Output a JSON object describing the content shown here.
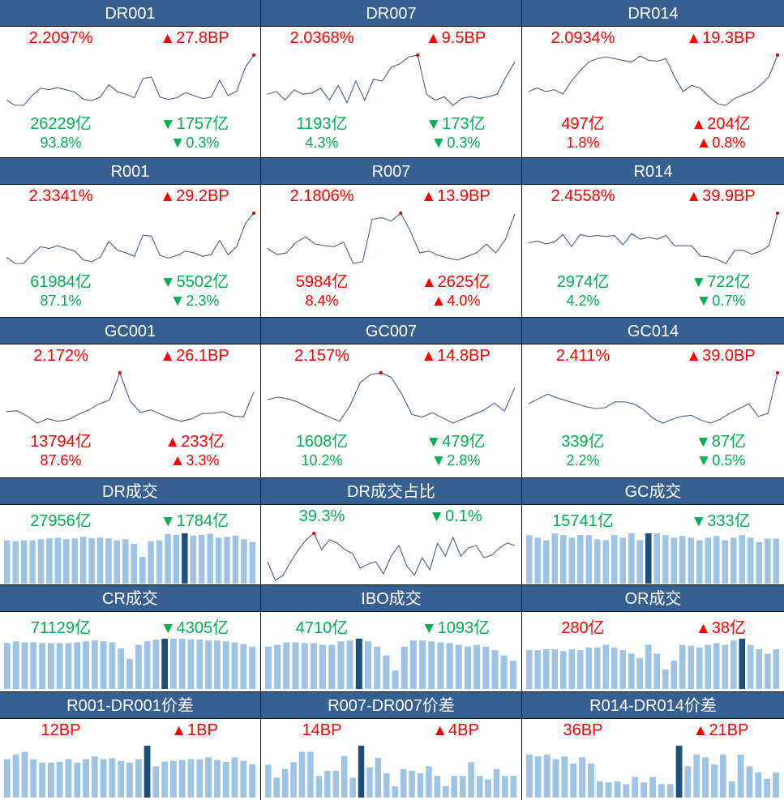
{
  "colors": {
    "header": "#376092",
    "up": "#ff0000",
    "down": "#00b050",
    "line": "#4a5f80",
    "bar": "#9dc3e6",
    "bar_current": "#1f4e79",
    "marker": "#e00000"
  },
  "panels": [
    {
      "title": "DR001",
      "type": "line",
      "rows": [
        {
          "left": {
            "text": "2.2097%",
            "color": "red"
          },
          "right": {
            "text": "27.8BP",
            "dir": "up"
          }
        },
        {
          "left": {
            "text": "26229亿",
            "color": "green"
          },
          "right": {
            "text": "1757亿",
            "dir": "down"
          }
        },
        {
          "left": {
            "text": "93.8%",
            "color": "green"
          },
          "right": {
            "text": "0.3%",
            "dir": "down"
          }
        }
      ],
      "series": [
        -365,
        -383,
        -383,
        -350,
        -325,
        -330,
        -323,
        -330,
        -338,
        -362,
        -367,
        -355,
        -313,
        -337,
        -345,
        -357,
        -292,
        -287,
        -355,
        -363,
        -357,
        -340,
        -350,
        -360,
        -355,
        -298,
        -350,
        -335,
        -255,
        -213
      ]
    },
    {
      "title": "DR007",
      "type": "line",
      "rows": [
        {
          "left": {
            "text": "2.0368%",
            "color": "red"
          },
          "right": {
            "text": "9.5BP",
            "dir": "up"
          }
        },
        {
          "left": {
            "text": "1193亿",
            "color": "green"
          },
          "right": {
            "text": "173亿",
            "dir": "down"
          }
        },
        {
          "left": {
            "text": "4.3%",
            "color": "green"
          },
          "right": {
            "text": "0.3%",
            "dir": "down"
          }
        }
      ],
      "series": [
        -115,
        -112,
        -122,
        -110,
        -115,
        -114,
        -108,
        -122,
        -105,
        -125,
        -100,
        -122,
        -98,
        -100,
        -84,
        -80,
        -72,
        -70,
        -115,
        -122,
        -118,
        -128,
        -120,
        -118,
        -120,
        -118,
        -115,
        -95,
        -78
      ]
    },
    {
      "title": "DR014",
      "type": "line",
      "rows": [
        {
          "left": {
            "text": "2.0934%",
            "color": "red"
          },
          "right": {
            "text": "19.3BP",
            "dir": "up"
          }
        },
        {
          "left": {
            "text": "497亿",
            "color": "red"
          },
          "right": {
            "text": "204亿",
            "dir": "up"
          }
        },
        {
          "left": {
            "text": "1.8%",
            "color": "red"
          },
          "right": {
            "text": "0.8%",
            "dir": "up"
          }
        }
      ],
      "series": [
        -112,
        -108,
        -112,
        -110,
        -115,
        -100,
        -88,
        -78,
        -74,
        -72,
        -74,
        -76,
        -78,
        -71,
        -76,
        -77,
        -74,
        -95,
        -112,
        -105,
        -108,
        -118,
        -126,
        -128,
        -120,
        -116,
        -112,
        -105,
        -95,
        -70
      ]
    },
    {
      "title": "R001",
      "type": "line",
      "rows": [
        {
          "left": {
            "text": "2.3341%",
            "color": "red"
          },
          "right": {
            "text": "29.2BP",
            "dir": "up"
          }
        },
        {
          "left": {
            "text": "61984亿",
            "color": "green"
          },
          "right": {
            "text": "5502亿",
            "dir": "down"
          }
        },
        {
          "left": {
            "text": "87.1%",
            "color": "green"
          },
          "right": {
            "text": "2.3%",
            "dir": "down"
          }
        }
      ],
      "series": [
        -315,
        -322,
        -322,
        -312,
        -303,
        -305,
        -302,
        -305,
        -308,
        -318,
        -320,
        -315,
        -297,
        -307,
        -310,
        -314,
        -290,
        -291,
        -313,
        -316,
        -313,
        -308,
        -310,
        -314,
        -312,
        -296,
        -312,
        -303,
        -277,
        -265
      ]
    },
    {
      "title": "R007",
      "type": "line",
      "rows": [
        {
          "left": {
            "text": "2.1806%",
            "color": "red"
          },
          "right": {
            "text": "13.9BP",
            "dir": "up"
          }
        },
        {
          "left": {
            "text": "5984亿",
            "color": "red"
          },
          "right": {
            "text": "2625亿",
            "dir": "up"
          }
        },
        {
          "left": {
            "text": "8.4%",
            "color": "red"
          },
          "right": {
            "text": "4.0%",
            "dir": "up"
          }
        }
      ],
      "series": [
        -305,
        -312,
        -310,
        -298,
        -292,
        -300,
        -302,
        -303,
        -298,
        -322,
        -320,
        -272,
        -270,
        -274,
        -265,
        -285,
        -310,
        -308,
        -313,
        -316,
        -318,
        -314,
        -310,
        -300,
        -310,
        -295,
        -266
      ]
    },
    {
      "title": "R014",
      "type": "line",
      "rows": [
        {
          "left": {
            "text": "2.4558%",
            "color": "red"
          },
          "right": {
            "text": "39.9BP",
            "dir": "up"
          }
        },
        {
          "left": {
            "text": "2974亿",
            "color": "green"
          },
          "right": {
            "text": "722亿",
            "dir": "down"
          }
        },
        {
          "left": {
            "text": "4.2%",
            "color": "green"
          },
          "right": {
            "text": "0.7%",
            "dir": "down"
          }
        }
      ],
      "series": [
        -297,
        -295,
        -298,
        -296,
        -288,
        -301,
        -288,
        -290,
        -289,
        -290,
        -289,
        -299,
        -287,
        -293,
        -291,
        -293,
        -289,
        -300,
        -300,
        -300,
        -311,
        -312,
        -315,
        -319,
        -305,
        -305,
        -309,
        -306,
        -300,
        -265
      ]
    },
    {
      "title": "GC001",
      "type": "line",
      "rows": [
        {
          "left": {
            "text": "2.172%",
            "color": "red"
          },
          "right": {
            "text": "26.1BP",
            "dir": "up"
          }
        },
        {
          "left": {
            "text": "13794亿",
            "color": "red"
          },
          "right": {
            "text": "233亿",
            "dir": "up"
          }
        },
        {
          "left": {
            "text": "87.6%",
            "color": "red"
          },
          "right": {
            "text": "3.3%",
            "dir": "up"
          }
        }
      ],
      "series": [
        -507,
        -506,
        -512,
        -520,
        -515,
        -518,
        -516,
        -510,
        -505,
        -498,
        -494,
        -463,
        -495,
        -508,
        -505,
        -510,
        -515,
        -518,
        -515,
        -509,
        -509,
        -507,
        -512,
        -513,
        -485
      ]
    },
    {
      "title": "GC007",
      "type": "line",
      "rows": [
        {
          "left": {
            "text": "2.157%",
            "color": "red"
          },
          "right": {
            "text": "14.8BP",
            "dir": "up"
          }
        },
        {
          "left": {
            "text": "1608亿",
            "color": "green"
          },
          "right": {
            "text": "479亿",
            "dir": "down"
          }
        },
        {
          "left": {
            "text": "10.2%",
            "color": "green"
          },
          "right": {
            "text": "2.8%",
            "dir": "down"
          }
        }
      ],
      "series": [
        -493,
        -490,
        -492,
        -496,
        -502,
        -508,
        -513,
        -518,
        -500,
        -473,
        -464,
        -462,
        -467,
        -486,
        -510,
        -513,
        -508,
        -514,
        -520,
        -515,
        -510,
        -505,
        -497,
        -506,
        -479
      ]
    },
    {
      "title": "GC014",
      "type": "line",
      "rows": [
        {
          "left": {
            "text": "2.411%",
            "color": "red"
          },
          "right": {
            "text": "39.0BP",
            "dir": "up"
          }
        },
        {
          "left": {
            "text": "339亿",
            "color": "green"
          },
          "right": {
            "text": "87亿",
            "dir": "down"
          }
        },
        {
          "left": {
            "text": "2.2%",
            "color": "green"
          },
          "right": {
            "text": "0.5%",
            "dir": "down"
          }
        }
      ],
      "series": [
        -500,
        -495,
        -490,
        -494,
        -497,
        -500,
        -503,
        -505,
        -504,
        -498,
        -498,
        -500,
        -506,
        -515,
        -520,
        -516,
        -513,
        -512,
        -517,
        -520,
        -516,
        -510,
        -505,
        -500,
        -513,
        -510,
        -468
      ]
    },
    {
      "title": "DR成交",
      "type": "bar",
      "rows": [
        {
          "left": {
            "text": "27956亿",
            "color": "green"
          },
          "right": {
            "text": "1784亿",
            "dir": "down"
          }
        }
      ],
      "series": [
        148,
        145,
        148,
        148,
        152,
        155,
        157,
        152,
        155,
        160,
        155,
        157,
        155,
        148,
        152,
        136,
        92,
        145,
        148,
        170,
        167,
        172,
        164,
        167,
        170,
        157,
        160,
        164,
        152,
        142
      ],
      "current": 21
    },
    {
      "title": "DR成交占比",
      "type": "line",
      "rows": [
        {
          "left": {
            "text": "39.3%",
            "color": "green"
          },
          "right": {
            "text": "0.1%",
            "dir": "down"
          }
        }
      ],
      "series": [
        -695,
        -718,
        -712,
        -695,
        -680,
        -668,
        -660,
        -680,
        -668,
        -672,
        -680,
        -685,
        -703,
        -698,
        -695,
        -710,
        -688,
        -675,
        -700,
        -712,
        -690,
        -705,
        -672,
        -688,
        -665,
        -688,
        -678,
        -675,
        -690,
        -687,
        -678,
        -672,
        -675
      ]
    },
    {
      "title": "GC成交",
      "type": "bar",
      "rows": [
        {
          "left": {
            "text": "15741亿",
            "color": "green"
          },
          "right": {
            "text": "333亿",
            "dir": "down"
          }
        }
      ],
      "series": [
        56,
        53,
        50,
        58,
        56,
        53,
        56,
        56,
        51,
        50,
        56,
        53,
        58,
        50,
        58,
        58,
        56,
        53,
        55,
        53,
        50,
        53,
        55,
        50,
        53,
        56,
        53,
        48,
        52,
        52
      ],
      "current": 14
    },
    {
      "title": "CR成交",
      "type": "bar",
      "rows": [
        {
          "left": {
            "text": "71129亿",
            "color": "green"
          },
          "right": {
            "text": "4305亿",
            "dir": "down"
          }
        }
      ],
      "series": [
        52,
        54,
        53,
        53,
        52,
        52,
        52,
        52,
        53,
        54,
        55,
        54,
        53,
        46,
        34,
        50,
        54,
        56,
        57,
        57,
        57,
        56,
        56,
        55,
        55,
        54,
        53,
        51,
        48
      ],
      "current": 18
    },
    {
      "title": "IBO成交",
      "type": "bar",
      "rows": [
        {
          "left": {
            "text": "4710亿",
            "color": "green"
          },
          "right": {
            "text": "1093亿",
            "dir": "down"
          }
        }
      ],
      "series": [
        48,
        50,
        53,
        53,
        52,
        52,
        50,
        50,
        54,
        55,
        57,
        54,
        48,
        38,
        21,
        48,
        55,
        55,
        54,
        53,
        52,
        50,
        48,
        50,
        48,
        44,
        38,
        32
      ],
      "current": 10
    },
    {
      "title": "OR成交",
      "type": "bar",
      "rows": [
        {
          "left": {
            "text": "280亿",
            "color": "red"
          },
          "right": {
            "text": "38亿",
            "dir": "up"
          }
        }
      ],
      "series": [
        44,
        44,
        45,
        45,
        43,
        45,
        44,
        47,
        47,
        50,
        47,
        44,
        40,
        35,
        50,
        40,
        22,
        32,
        50,
        49,
        47,
        50,
        52,
        50,
        55,
        57,
        50,
        45,
        40,
        45
      ],
      "current": 25
    },
    {
      "title": "R001-DR001价差",
      "type": "bar",
      "rows": [
        {
          "left": {
            "text": "12BP",
            "color": "red"
          },
          "right": {
            "text": "1BP",
            "dir": "up"
          }
        }
      ],
      "series": [
        43,
        48,
        51,
        43,
        39,
        39,
        40,
        43,
        39,
        43,
        46,
        43,
        44,
        41,
        39,
        43,
        58,
        35,
        40,
        41,
        42,
        43,
        43,
        45,
        42,
        40,
        45,
        41,
        37
      ],
      "current": 16
    },
    {
      "title": "R007-DR007价差",
      "type": "bar",
      "rows": [
        {
          "left": {
            "text": "14BP",
            "color": "red"
          },
          "right": {
            "text": "4BP",
            "dir": "up"
          }
        }
      ],
      "series": [
        38,
        23,
        33,
        41,
        53,
        53,
        25,
        31,
        31,
        48,
        23,
        60,
        35,
        46,
        28,
        13,
        33,
        31,
        28,
        36,
        25,
        13,
        25,
        25,
        41,
        25,
        21,
        33,
        25,
        25
      ],
      "current": 11
    },
    {
      "title": "R014-DR014价差",
      "type": "bar",
      "rows": [
        {
          "left": {
            "text": "36BP",
            "color": "red"
          },
          "right": {
            "text": "21BP",
            "dir": "up"
          }
        }
      ],
      "series": [
        48,
        46,
        48,
        43,
        46,
        38,
        45,
        38,
        18,
        17,
        18,
        15,
        23,
        17,
        23,
        15,
        15,
        58,
        35,
        48,
        45,
        37,
        48,
        18,
        48,
        35,
        28,
        21,
        28
      ],
      "current": 17
    }
  ]
}
